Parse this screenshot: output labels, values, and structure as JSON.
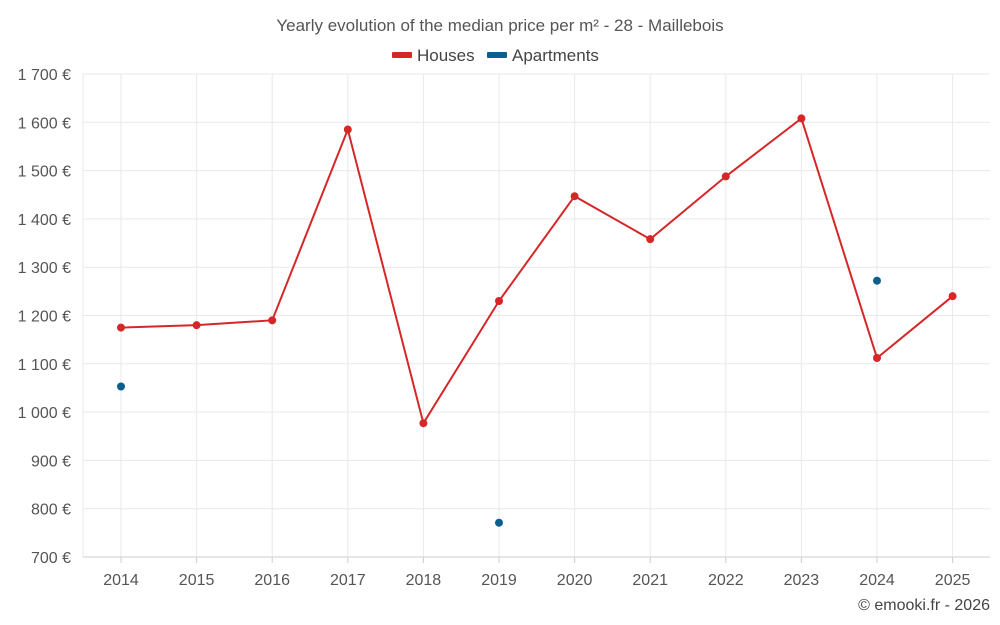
{
  "chart_data": {
    "type": "line",
    "title": "Yearly evolution of the median price per m² - 28 - Maillebois",
    "categories": [
      "2014",
      "2015",
      "2016",
      "2017",
      "2018",
      "2019",
      "2020",
      "2021",
      "2022",
      "2023",
      "2024",
      "2025"
    ],
    "ylim": [
      700,
      1700
    ],
    "yticks": [
      700,
      800,
      900,
      1000,
      1100,
      1200,
      1300,
      1400,
      1500,
      1600,
      1700
    ],
    "ytick_labels": [
      "700 €",
      "800 €",
      "900 €",
      "1 000 €",
      "1 100 €",
      "1 200 €",
      "1 300 €",
      "1 400 €",
      "1 500 €",
      "1 600 €",
      "1 700 €"
    ],
    "grid": true,
    "legend_position": "top-center",
    "series": [
      {
        "name": "Houses",
        "color": "#d62728",
        "values": [
          1175,
          1180,
          1190,
          1585,
          977,
          1230,
          1447,
          1358,
          1488,
          1608,
          1112,
          1240
        ]
      },
      {
        "name": "Apartments",
        "color": "#0b5f8f",
        "values": [
          1053,
          null,
          null,
          null,
          null,
          771,
          null,
          null,
          null,
          null,
          1272,
          null
        ]
      }
    ]
  },
  "credit": "© emooki.fr - 2026"
}
